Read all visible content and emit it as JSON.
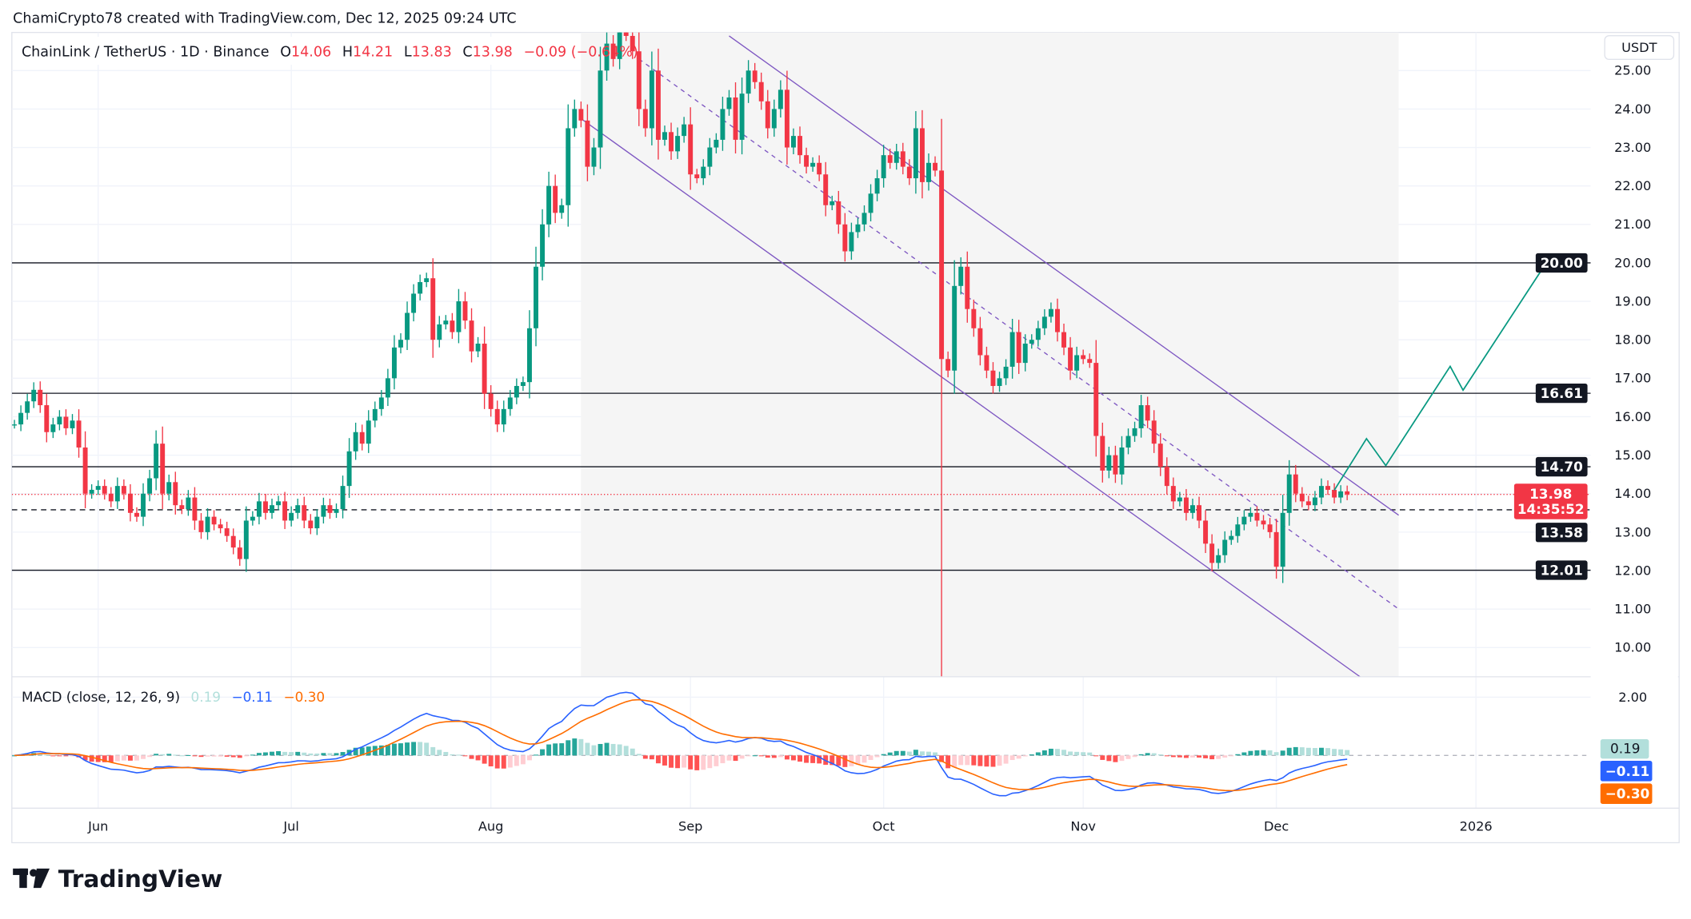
{
  "attribution": "ChamiCrypto78 created with TradingView.com, Dec 12, 2025 09:24 UTC",
  "header": {
    "symbol": "ChainLink / TetherUS · 1D · Binance",
    "o_label": "O",
    "o": "14.06",
    "h_label": "H",
    "h": "14.21",
    "l_label": "L",
    "l": "13.83",
    "c_label": "C",
    "c": "13.98",
    "change": "−0.09 (−0.64%)"
  },
  "currency_button": "USDT",
  "logo": "TradingView",
  "colors": {
    "up": "#089981",
    "down": "#f23645",
    "macd": "#2962ff",
    "signal": "#ff6d00",
    "hist_pos": "#26a69a",
    "hist_pos_fall": "#b2dfdb",
    "hist_neg": "#ff5252",
    "hist_neg_rise": "#ffcdd2",
    "projection": "#089981",
    "channel": "#7e57c2"
  },
  "chart_data": {
    "type": "candlestick",
    "start_date": "2025-05-19",
    "closes": [
      15.8,
      16.1,
      16.4,
      16.7,
      16.3,
      15.6,
      15.8,
      16.0,
      15.7,
      15.9,
      15.2,
      14.0,
      14.1,
      14.2,
      14.0,
      13.8,
      14.2,
      14.0,
      13.5,
      13.4,
      14.0,
      14.4,
      15.3,
      14.0,
      14.3,
      13.7,
      13.6,
      13.9,
      13.3,
      13.0,
      13.4,
      13.2,
      13.1,
      12.9,
      12.6,
      12.3,
      13.3,
      13.4,
      13.8,
      13.5,
      13.7,
      13.8,
      13.3,
      13.5,
      13.7,
      13.3,
      13.1,
      13.4,
      13.7,
      13.5,
      13.6,
      14.2,
      15.1,
      15.6,
      15.3,
      15.9,
      16.2,
      16.5,
      17.0,
      17.8,
      18.0,
      18.7,
      19.2,
      19.5,
      19.6,
      18.0,
      18.4,
      18.5,
      18.2,
      19.0,
      18.5,
      17.7,
      17.9,
      16.6,
      16.2,
      15.8,
      16.2,
      16.5,
      16.8,
      16.9,
      18.3,
      19.9,
      21.0,
      22.0,
      21.3,
      21.5,
      23.5,
      24.0,
      23.7,
      22.5,
      23.0,
      25.0,
      25.7,
      25.3,
      26.0,
      25.9,
      25.5,
      24.0,
      23.5,
      25.0,
      23.2,
      23.4,
      22.9,
      23.3,
      23.6,
      22.3,
      22.2,
      22.5,
      23.0,
      23.2,
      24.0,
      24.3,
      23.2,
      24.4,
      25.0,
      24.7,
      24.2,
      23.5,
      24.0,
      24.5,
      23.0,
      23.3,
      22.8,
      22.5,
      22.6,
      22.3,
      21.5,
      21.6,
      21.0,
      20.3,
      20.8,
      21.0,
      21.3,
      21.8,
      22.2,
      22.8,
      22.6,
      22.9,
      22.5,
      22.2,
      23.5,
      22.1,
      22.6,
      22.4,
      17.5,
      17.2,
      19.4,
      19.9,
      18.8,
      18.3,
      17.6,
      17.2,
      16.8,
      17.0,
      17.3,
      18.2,
      17.4,
      17.9,
      18.0,
      18.3,
      18.6,
      18.8,
      18.2,
      17.8,
      17.2,
      17.6,
      17.5,
      17.4,
      15.5,
      14.6,
      15.0,
      14.5,
      15.2,
      15.5,
      15.7,
      16.3,
      15.9,
      15.3,
      14.7,
      14.2,
      13.8,
      13.9,
      13.5,
      13.7,
      13.3,
      12.7,
      12.2,
      12.4,
      12.8,
      12.9,
      13.2,
      13.4,
      13.5,
      13.3,
      13.2,
      13.0,
      12.1,
      13.5,
      14.5,
      14.0,
      13.8,
      13.7,
      13.9,
      14.2,
      14.1,
      13.9,
      14.06,
      13.98
    ],
    "bar_overrides": [
      {
        "date": "2025-10-10",
        "low": 8.5
      },
      {
        "date": "2025-12-12",
        "open": 14.06,
        "high": 14.21,
        "low": 13.83,
        "close": 13.98
      }
    ],
    "y_ticks": [
      "10.00",
      "11.00",
      "12.00",
      "13.00",
      "14.00",
      "15.00",
      "16.00",
      "17.00",
      "18.00",
      "19.00",
      "20.00",
      "21.00",
      "22.00",
      "23.00",
      "24.00",
      "25.00"
    ],
    "ylim": [
      9.24,
      25.99
    ],
    "x_ticks": [
      {
        "label": "Jun",
        "date": "2025-06-01"
      },
      {
        "label": "Jul",
        "date": "2025-07-01"
      },
      {
        "label": "Aug",
        "date": "2025-08-01"
      },
      {
        "label": "Sep",
        "date": "2025-09-01"
      },
      {
        "label": "Oct",
        "date": "2025-10-01"
      },
      {
        "label": "Nov",
        "date": "2025-11-01"
      },
      {
        "label": "Dec",
        "date": "2025-12-01"
      },
      {
        "label": "2026",
        "date": "2026-01-01"
      }
    ],
    "levels": [
      {
        "price": 20.0,
        "label": "20.00",
        "style": "solid"
      },
      {
        "price": 16.61,
        "label": "16.61",
        "style": "solid"
      },
      {
        "price": 14.7,
        "label": "14.70",
        "style": "solid"
      },
      {
        "price": 13.58,
        "label": "13.58",
        "style": "dashed"
      },
      {
        "price": 12.01,
        "label": "12.01",
        "style": "solid"
      }
    ],
    "last_price": {
      "label": "13.98",
      "countdown": "14:35:52",
      "price": 13.98
    },
    "channel": {
      "upper": [
        {
          "date": "2025-09-07",
          "price": 25.9
        },
        {
          "date": "2025-12-20",
          "price": 13.44
        }
      ],
      "middle": [
        {
          "date": "2025-08-24",
          "price": 25.3
        },
        {
          "date": "2025-12-20",
          "price": 11.0
        }
      ],
      "lower": [
        {
          "date": "2025-08-15",
          "price": 23.75
        },
        {
          "date": "2025-12-14",
          "price": 9.24
        }
      ],
      "shade": {
        "from": "2025-08-15",
        "to": "2025-12-20"
      }
    },
    "projection": [
      {
        "date": "2025-12-10",
        "price": 14.09
      },
      {
        "date": "2025-12-15",
        "price": 15.43
      },
      {
        "date": "2025-12-18",
        "price": 14.73
      },
      {
        "date": "2025-12-28",
        "price": 17.31
      },
      {
        "date": "2025-12-30",
        "price": 16.69
      },
      {
        "date": "2026-01-12",
        "price": 20.02
      }
    ],
    "macd": {
      "title": "MACD (close, 12, 26, 9)",
      "hist_value": "0.19",
      "macd_value": "−0.11",
      "signal_value": "−0.30",
      "y_tick": "2.00",
      "params": [
        12,
        26,
        9
      ]
    }
  }
}
